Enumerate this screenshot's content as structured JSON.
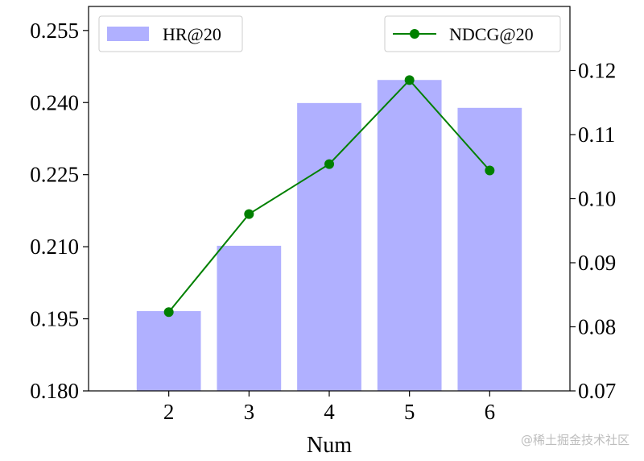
{
  "chart_data": {
    "type": "bar",
    "categories": [
      "2",
      "3",
      "4",
      "5",
      "6"
    ],
    "xlabel": "Num",
    "series": [
      {
        "name": "HR@20",
        "type": "bar",
        "axis": "left",
        "color": "#b0b0ff",
        "values": [
          0.1966,
          0.2102,
          0.2399,
          0.2447,
          0.2389
        ]
      },
      {
        "name": "NDCG@20",
        "type": "line",
        "axis": "right",
        "color": "#008000",
        "values": [
          0.0823,
          0.0976,
          0.1054,
          0.1185,
          0.1044
        ]
      }
    ],
    "left_axis": {
      "ylim": [
        0.18,
        0.26
      ],
      "ticks": [
        "0.180",
        "0.195",
        "0.210",
        "0.225",
        "0.240",
        "0.255"
      ]
    },
    "right_axis": {
      "ylim": [
        0.07,
        0.13
      ],
      "ticks": [
        "0.07",
        "0.08",
        "0.09",
        "0.10",
        "0.11",
        "0.12"
      ]
    },
    "legend": [
      {
        "label": "HR@20",
        "position": "top-left"
      },
      {
        "label": "NDCG@20",
        "position": "top-right"
      }
    ]
  },
  "watermark": "@稀土掘金技术社区"
}
